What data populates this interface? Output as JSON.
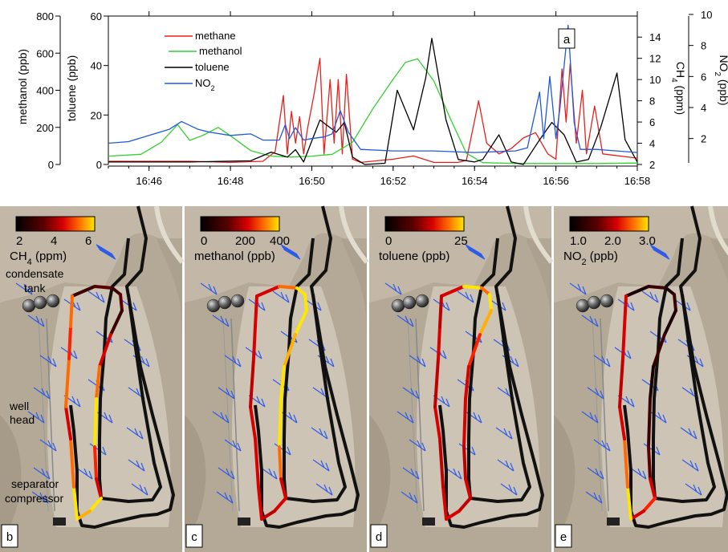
{
  "chart_data": [
    {
      "type": "line",
      "panel_label": "a",
      "xlabel": "",
      "x_ticks": [
        "16:46",
        "16:48",
        "16:50",
        "16:52",
        "16:54",
        "16:56",
        "16:58"
      ],
      "xlim": [
        "16:45",
        "16:58"
      ],
      "axes": {
        "methanol": {
          "label": "methanol (ppb)",
          "lim": [
            0,
            800
          ],
          "ticks": [
            "0",
            "200",
            "400",
            "600",
            "800"
          ]
        },
        "toluene": {
          "label": "toluene (ppb)",
          "lim": [
            0,
            60
          ],
          "ticks": [
            "0",
            "20",
            "40",
            "60"
          ]
        },
        "ch4": {
          "label_main": "CH",
          "label_sub": "4",
          "label_tail": " (ppm)",
          "lim": [
            2,
            15
          ],
          "ticks": [
            "2",
            "4",
            "6",
            "8",
            "10",
            "12",
            "14"
          ]
        },
        "no2": {
          "label_main": "NO",
          "label_sub": "2",
          "label_tail": " (ppb)",
          "lim": [
            1,
            10
          ],
          "ticks": [
            "2",
            "4",
            "6",
            "8",
            "10"
          ]
        }
      },
      "legend_position": "top-left",
      "series": [
        {
          "name": "methane",
          "axis": "ch4",
          "color": "#e8201c",
          "points": [
            [
              "16:45",
              2.3
            ],
            [
              "16:46",
              2.3
            ],
            [
              "16:47",
              2.3
            ],
            [
              "16:48",
              2.2
            ],
            [
              "16:48.8",
              2.3
            ],
            [
              "16:49.1",
              3.2
            ],
            [
              "16:49.3",
              8.5
            ],
            [
              "16:49.4",
              3
            ],
            [
              "16:49.5",
              7
            ],
            [
              "16:49.6",
              4
            ],
            [
              "16:49.7",
              6.5
            ],
            [
              "16:49.8",
              3
            ],
            [
              "16:49.9",
              5.5
            ],
            [
              "16:50.05",
              8.5
            ],
            [
              "16:50.2",
              12
            ],
            [
              "16:50.3",
              3
            ],
            [
              "16:50.45",
              10
            ],
            [
              "16:50.55",
              4
            ],
            [
              "16:50.65",
              10
            ],
            [
              "16:50.75",
              3
            ],
            [
              "16:50.85",
              10.5
            ],
            [
              "16:51",
              2.5
            ],
            [
              "16:51.2",
              2.2
            ],
            [
              "16:52",
              2.5
            ],
            [
              "16:52.5",
              2.8
            ],
            [
              "16:53",
              2.2
            ],
            [
              "16:53.6",
              2.2
            ],
            [
              "16:53.8",
              2.4
            ],
            [
              "16:54.1",
              8
            ],
            [
              "16:54.3",
              4
            ],
            [
              "16:54.6",
              3
            ],
            [
              "16:54.9",
              3.5
            ],
            [
              "16:55.2",
              4.5
            ],
            [
              "16:55.5",
              5
            ],
            [
              "16:55.8",
              3
            ],
            [
              "16:56",
              2.5
            ],
            [
              "16:56.15",
              11
            ],
            [
              "16:56.25",
              6
            ],
            [
              "16:56.35",
              11.5
            ],
            [
              "16:56.5",
              4
            ],
            [
              "16:56.65",
              9
            ],
            [
              "16:56.75",
              3
            ],
            [
              "16:56.95",
              7.5
            ],
            [
              "16:57.15",
              3
            ],
            [
              "16:58",
              2.6
            ]
          ]
        },
        {
          "name": "methanol",
          "axis": "methanol",
          "color": "#32d12e",
          "points": [
            [
              "16:45",
              45
            ],
            [
              "16:45.8",
              55
            ],
            [
              "16:46.3",
              120
            ],
            [
              "16:46.7",
              215
            ],
            [
              "16:47",
              130
            ],
            [
              "16:47.3",
              155
            ],
            [
              "16:47.7",
              200
            ],
            [
              "16:48",
              155
            ],
            [
              "16:48.5",
              75
            ],
            [
              "16:49",
              45
            ],
            [
              "16:49.5",
              40
            ],
            [
              "16:50",
              45
            ],
            [
              "16:50.5",
              55
            ],
            [
              "16:51",
              120
            ],
            [
              "16:51.5",
              300
            ],
            [
              "16:52",
              460
            ],
            [
              "16:52.3",
              550
            ],
            [
              "16:52.6",
              570
            ],
            [
              "16:53",
              450
            ],
            [
              "16:53.4",
              250
            ],
            [
              "16:53.8",
              60
            ],
            [
              "16:54.2",
              10
            ],
            [
              "16:55",
              5
            ],
            [
              "16:56",
              5
            ],
            [
              "16:57",
              5
            ],
            [
              "16:58",
              8
            ]
          ]
        },
        {
          "name": "toluene",
          "axis": "toluene",
          "color": "#000000",
          "points": [
            [
              "16:45",
              1
            ],
            [
              "16:47",
              1
            ],
            [
              "16:48.5",
              1.5
            ],
            [
              "16:49",
              5
            ],
            [
              "16:49.4",
              3
            ],
            [
              "16:49.6",
              6
            ],
            [
              "16:49.8",
              1
            ],
            [
              "16:50.2",
              18
            ],
            [
              "16:50.6",
              13
            ],
            [
              "16:50.8",
              17
            ],
            [
              "16:51",
              3
            ],
            [
              "16:51.3",
              0
            ],
            [
              "16:51.8",
              0.5
            ],
            [
              "16:52.1",
              30
            ],
            [
              "16:52.3",
              22
            ],
            [
              "16:52.5",
              14
            ],
            [
              "16:52.8",
              35
            ],
            [
              "16:52.95",
              51
            ],
            [
              "16:53.3",
              18
            ],
            [
              "16:53.6",
              2
            ],
            [
              "16:54",
              1
            ],
            [
              "16:54.2",
              2
            ],
            [
              "16:54.6",
              12
            ],
            [
              "16:54.9",
              1
            ],
            [
              "16:55.2",
              0
            ],
            [
              "16:55.6",
              10
            ],
            [
              "16:55.9",
              17
            ],
            [
              "16:56.2",
              12
            ],
            [
              "16:56.5",
              1
            ],
            [
              "16:56.8",
              2
            ],
            [
              "16:57.1",
              15
            ],
            [
              "16:57.5",
              37
            ],
            [
              "16:57.7",
              10
            ],
            [
              "16:58",
              1
            ]
          ]
        },
        {
          "name": "NO",
          "name_sub": "2",
          "axis": "no2",
          "color": "#2158dc",
          "points": [
            [
              "16:45",
              1.7
            ],
            [
              "16:45.5",
              1.8
            ],
            [
              "16:46",
              2.2
            ],
            [
              "16:46.5",
              2.6
            ],
            [
              "16:46.8",
              3.1
            ],
            [
              "16:47.2",
              2.6
            ],
            [
              "16:47.5",
              2.4
            ],
            [
              "16:48",
              2.2
            ],
            [
              "16:48.5",
              2.3
            ],
            [
              "16:48.8",
              1.9
            ],
            [
              "16:49.2",
              1.9
            ],
            [
              "16:49.35",
              2.9
            ],
            [
              "16:49.45",
              2
            ],
            [
              "16:49.6",
              2.7
            ],
            [
              "16:49.8",
              1.9
            ],
            [
              "16:50",
              2
            ],
            [
              "16:50.3",
              2.1
            ],
            [
              "16:50.5",
              2.3
            ],
            [
              "16:50.7",
              3.8
            ],
            [
              "16:50.9",
              2.4
            ],
            [
              "16:51.2",
              1.3
            ],
            [
              "16:52",
              1.2
            ],
            [
              "16:53",
              1.2
            ],
            [
              "16:54",
              1.1
            ],
            [
              "16:55",
              1.2
            ],
            [
              "16:55.3",
              1.4
            ],
            [
              "16:55.6",
              5
            ],
            [
              "16:55.7",
              2
            ],
            [
              "16:55.85",
              6
            ],
            [
              "16:56",
              2
            ],
            [
              "16:56.1",
              4
            ],
            [
              "16:56.3",
              9.3
            ],
            [
              "16:56.45",
              3
            ],
            [
              "16:56.6",
              1.3
            ],
            [
              "16:57",
              1.3
            ],
            [
              "16:58",
              1.1
            ]
          ]
        }
      ]
    },
    {
      "type": "map",
      "maps": [
        {
          "label": "b",
          "colorbar_ticks": [
            "2",
            "4",
            "6"
          ],
          "colorbar_label_main": "CH",
          "colorbar_label_sub": "4",
          "colorbar_label_tail": " (ppm)",
          "annotations": {
            "condensate": "condensate",
            "tank": "tank",
            "well": "well",
            "head": "head",
            "separator": "separator",
            "compressor": "compressor"
          }
        },
        {
          "label": "c",
          "colorbar_ticks": [
            "0",
            "200",
            "400"
          ],
          "colorbar_label": "methanol (ppb)"
        },
        {
          "label": "d",
          "colorbar_ticks": [
            "0",
            "25"
          ],
          "colorbar_label": "toluene (ppb)"
        },
        {
          "label": "e",
          "colorbar_ticks": [
            "1.0",
            "2.0",
            "3.0"
          ],
          "colorbar_label_main": "NO",
          "colorbar_label_sub": "2",
          "colorbar_label_tail": " (ppb)"
        }
      ]
    }
  ]
}
